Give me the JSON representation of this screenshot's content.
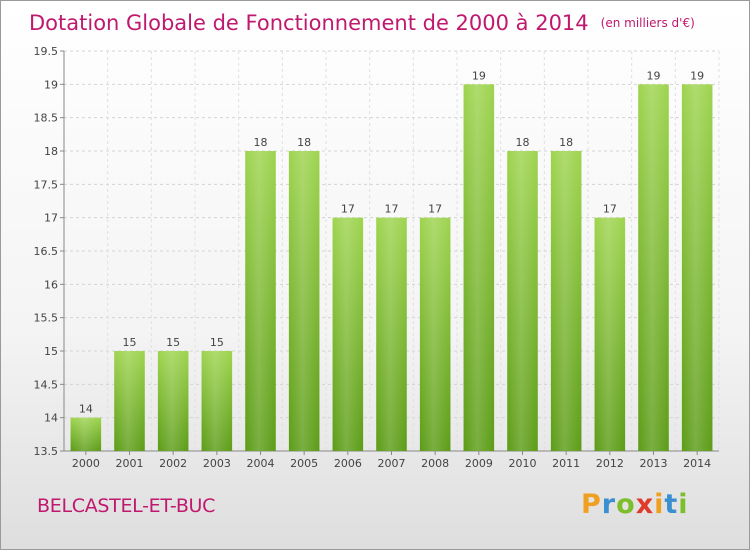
{
  "chart_data": {
    "type": "bar",
    "title": "Dotation Globale de Fonctionnement de 2000 à 2014",
    "subtitle": "(en milliers d'€)",
    "xlabel": "",
    "ylabel": "",
    "categories": [
      "2000",
      "2001",
      "2002",
      "2003",
      "2004",
      "2005",
      "2006",
      "2007",
      "2008",
      "2009",
      "2010",
      "2011",
      "2012",
      "2013",
      "2014"
    ],
    "values": [
      14,
      15,
      15,
      15,
      18,
      18,
      17,
      17,
      17,
      19,
      18,
      18,
      17,
      19,
      19
    ],
    "ylim": [
      13.5,
      19.5
    ],
    "yticks": [
      "13.5",
      "14",
      "14.5",
      "15",
      "15.5",
      "16",
      "16.5",
      "17",
      "17.5",
      "18",
      "18.5",
      "19",
      "19.5"
    ],
    "grid": true,
    "legend": "none",
    "bar_color": "#7cc12e"
  },
  "footer": {
    "commune": "BELCASTEL-ET-BUC",
    "logo": [
      "P",
      "r",
      "o",
      "x",
      "i",
      "t",
      "i"
    ],
    "logo_colors": [
      "#f0a020",
      "#3a8fd0",
      "#7cbf2a",
      "#e03a2a",
      "#f0a020",
      "#3a8fd0",
      "#7cbf2a"
    ]
  }
}
